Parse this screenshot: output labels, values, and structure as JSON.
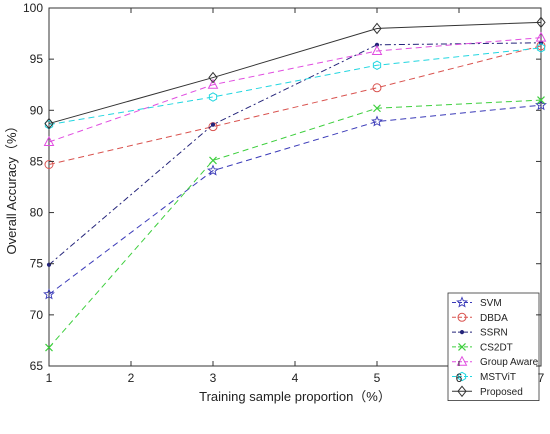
{
  "chart_data": {
    "type": "line",
    "title": "",
    "xlabel": "Training sample proportion（%）",
    "ylabel": "Overall Accuracy（%）",
    "xlim": [
      1,
      7
    ],
    "ylim": [
      65,
      100
    ],
    "xticks": [
      1,
      2,
      3,
      4,
      5,
      6,
      7
    ],
    "yticks": [
      65,
      70,
      75,
      80,
      85,
      90,
      95,
      100
    ],
    "grid": false,
    "legend_position": "bottom-right",
    "x": [
      1,
      3,
      5,
      7
    ],
    "series": [
      {
        "name": "SVM",
        "values": [
          72.0,
          84.1,
          88.9,
          90.5
        ],
        "color": "#3a3ab8",
        "dash": "6,4",
        "marker": "star"
      },
      {
        "name": "DBDA",
        "values": [
          84.7,
          88.4,
          92.2,
          96.3
        ],
        "color": "#d9534f",
        "dash": "6,4",
        "marker": "circle"
      },
      {
        "name": "SSRN",
        "values": [
          74.9,
          88.6,
          96.4,
          96.6
        ],
        "color": "#24247a",
        "dash": "6,3,2,3",
        "marker": "dot"
      },
      {
        "name": "CS2DT",
        "values": [
          66.8,
          85.1,
          90.2,
          91.0
        ],
        "color": "#3ecf3e",
        "dash": "6,4",
        "marker": "x"
      },
      {
        "name": "Group Aware",
        "values": [
          86.9,
          92.5,
          95.8,
          97.1
        ],
        "color": "#e04de0",
        "dash": "6,4",
        "marker": "triangle"
      },
      {
        "name": "MSTViT",
        "values": [
          88.6,
          91.3,
          94.4,
          96.1
        ],
        "color": "#22d6e0",
        "dash": "6,4",
        "marker": "hexagon"
      },
      {
        "name": "Proposed",
        "values": [
          88.7,
          93.2,
          98.0,
          98.6
        ],
        "color": "#333333",
        "dash": "",
        "marker": "diamond"
      }
    ]
  }
}
